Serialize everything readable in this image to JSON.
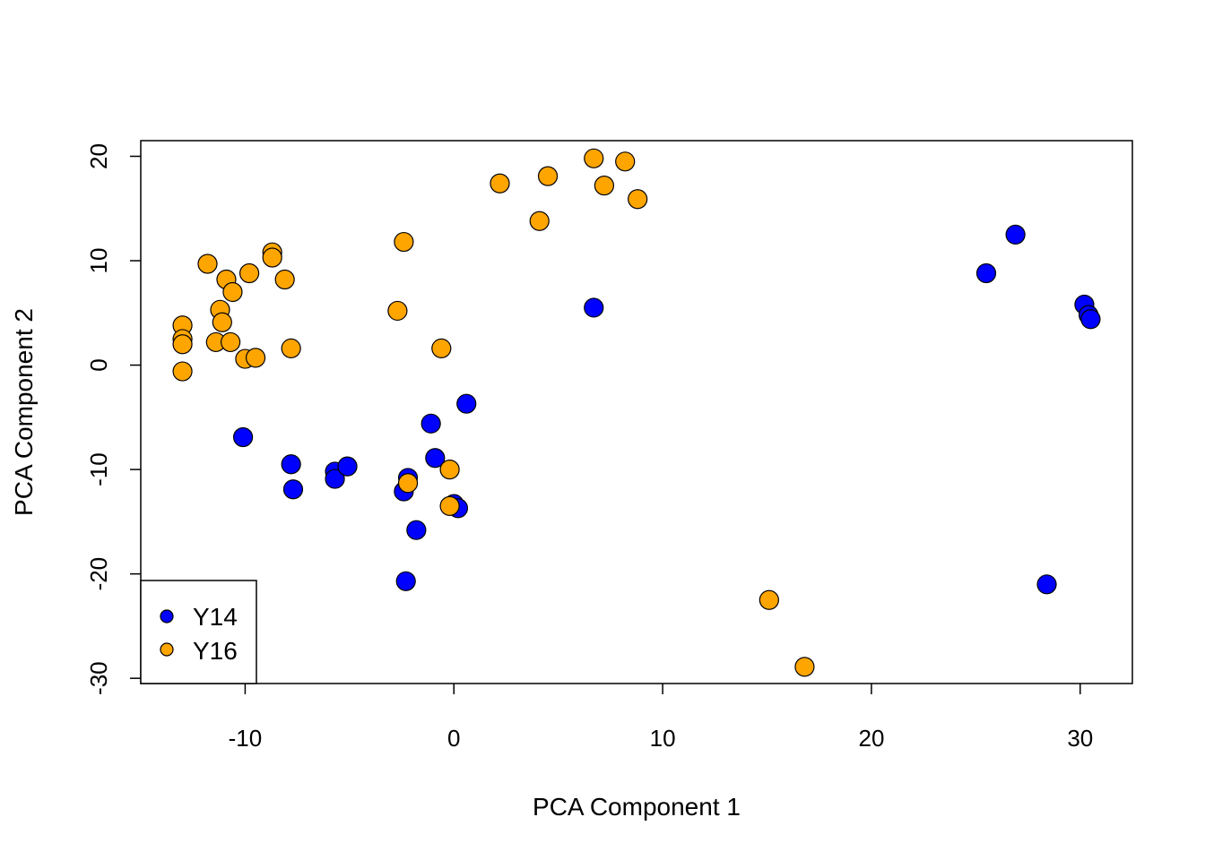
{
  "chart_data": {
    "type": "scatter",
    "title": "",
    "xlabel": "PCA Component 1",
    "ylabel": "PCA Component 2",
    "xlim": [
      -15,
      32.5
    ],
    "ylim": [
      -30.5,
      21.5
    ],
    "x_ticks": [
      -10,
      0,
      10,
      20,
      30
    ],
    "y_ticks": [
      -30,
      -20,
      -10,
      0,
      10,
      20
    ],
    "grid": false,
    "legend": {
      "position": "bottom-left"
    },
    "series": [
      {
        "name": "Y14",
        "color": "#0000ff",
        "points": [
          [
            -10.1,
            -6.9
          ],
          [
            -7.8,
            -9.5
          ],
          [
            -7.7,
            -11.9
          ],
          [
            -5.7,
            -10.2
          ],
          [
            -5.7,
            -10.9
          ],
          [
            -5.1,
            -9.7
          ],
          [
            -2.4,
            -12.1
          ],
          [
            -2.2,
            -10.8
          ],
          [
            -2.3,
            -20.7
          ],
          [
            -1.8,
            -15.8
          ],
          [
            -1.1,
            -5.6
          ],
          [
            -0.9,
            -8.9
          ],
          [
            0.0,
            -13.3
          ],
          [
            0.2,
            -13.7
          ],
          [
            0.6,
            -3.7
          ],
          [
            6.7,
            5.5
          ],
          [
            25.5,
            8.8
          ],
          [
            26.9,
            12.5
          ],
          [
            28.4,
            -21.0
          ],
          [
            30.2,
            5.8
          ],
          [
            30.4,
            4.8
          ],
          [
            30.5,
            4.4
          ]
        ]
      },
      {
        "name": "Y16",
        "color": "#ffa500",
        "points": [
          [
            -13.0,
            3.8
          ],
          [
            -13.0,
            2.5
          ],
          [
            -13.0,
            2.0
          ],
          [
            -13.0,
            -0.6
          ],
          [
            -11.8,
            9.7
          ],
          [
            -11.4,
            2.2
          ],
          [
            -11.2,
            5.3
          ],
          [
            -11.1,
            4.1
          ],
          [
            -10.9,
            8.2
          ],
          [
            -10.7,
            2.2
          ],
          [
            -10.6,
            7.0
          ],
          [
            -10.0,
            0.6
          ],
          [
            -9.8,
            8.8
          ],
          [
            -9.5,
            0.7
          ],
          [
            -8.7,
            10.8
          ],
          [
            -8.7,
            10.3
          ],
          [
            -8.1,
            8.2
          ],
          [
            -7.8,
            1.6
          ],
          [
            -2.7,
            5.2
          ],
          [
            -2.4,
            11.8
          ],
          [
            -2.2,
            -11.3
          ],
          [
            -0.6,
            1.6
          ],
          [
            -0.2,
            -10.0
          ],
          [
            -0.2,
            -13.5
          ],
          [
            2.2,
            17.4
          ],
          [
            4.1,
            13.8
          ],
          [
            4.5,
            18.1
          ],
          [
            6.7,
            19.8
          ],
          [
            7.2,
            17.2
          ],
          [
            8.2,
            19.5
          ],
          [
            8.8,
            15.9
          ],
          [
            15.1,
            -22.5
          ],
          [
            16.8,
            -28.9
          ]
        ]
      }
    ]
  }
}
